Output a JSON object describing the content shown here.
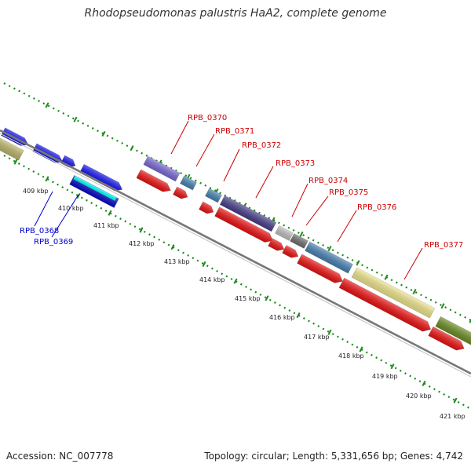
{
  "title": "Rhodopseudomonas palustris HaA2, complete genome",
  "accession": "Accession: NC_007778",
  "topology": "Topology: circular; Length: 5,331,656 bp; Genes: 4,742",
  "colors": {
    "forward_strand_blue": "#1010ee",
    "reverse_strand_red": "#ee1111",
    "feature_label_red": "#cc0000",
    "feature_label_blue": "#0000cc",
    "backbone_gray": "#808080",
    "tick_green": "#1a8a1a"
  },
  "kbp_labels": [
    "409 kbp",
    "410 kbp",
    "411 kbp",
    "412 kbp",
    "413 kbp",
    "414 kbp",
    "415 kbp",
    "416 kbp",
    "417 kbp",
    "418 kbp",
    "419 kbp",
    "420 kbp",
    "421 kbp"
  ],
  "gene_labels": [
    {
      "text": "RPB_0368",
      "color": "#0000cc"
    },
    {
      "text": "RPB_0369",
      "color": "#0000cc"
    },
    {
      "text": "RPB_0370",
      "color": "#cc0000"
    },
    {
      "text": "RPB_0371",
      "color": "#cc0000"
    },
    {
      "text": "RPB_0372",
      "color": "#cc0000"
    },
    {
      "text": "RPB_0373",
      "color": "#cc0000"
    },
    {
      "text": "RPB_0374",
      "color": "#cc0000"
    },
    {
      "text": "RPB_0375",
      "color": "#cc0000"
    },
    {
      "text": "RPB_0376",
      "color": "#cc0000"
    },
    {
      "text": "RPB_0377",
      "color": "#cc0000"
    }
  ]
}
